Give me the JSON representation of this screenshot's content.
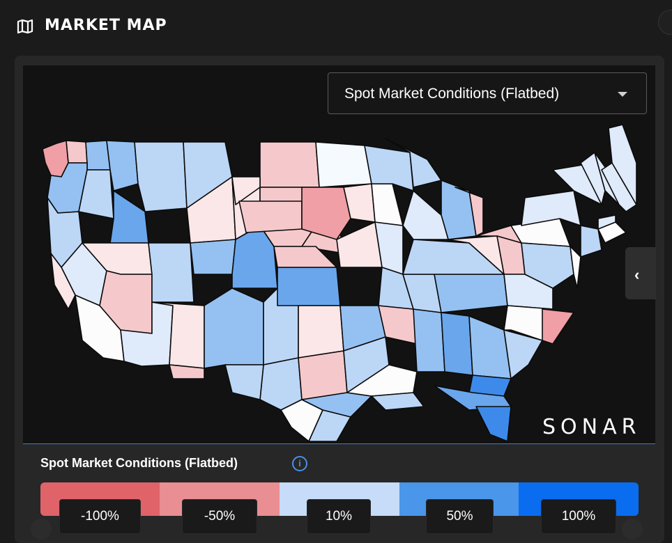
{
  "header": {
    "title": "MARKET MAP",
    "icon": "map-icon"
  },
  "selector": {
    "selected": "Spot Market Conditions (Flatbed)",
    "icon": "caret-down-icon"
  },
  "side_toggle": {
    "glyph": "‹",
    "icon": "chevron-left-icon"
  },
  "brand": {
    "logo_text": "SONAR"
  },
  "legend": {
    "title": "Spot Market Conditions  (Flatbed)",
    "info_glyph": "i",
    "colors": [
      "#e0636a",
      "#e98e92",
      "#c6dcf9",
      "#4996ea",
      "#0a6df0"
    ],
    "labels": [
      "-100%",
      "-50%",
      "10%",
      "50%",
      "100%"
    ]
  },
  "map_palette": {
    "strong_red": "#ef9fa5",
    "light_red": "#f5c9cc",
    "pale_red": "#fbe7e8",
    "white": "#fdfcfc",
    "pale_blue": "#dfeafa",
    "light_blue": "#bcd6f6",
    "mid_blue": "#95c1f2",
    "blue": "#6aa6ec",
    "strong_blue": "#3d8aea",
    "border": "#0b0b0b"
  }
}
